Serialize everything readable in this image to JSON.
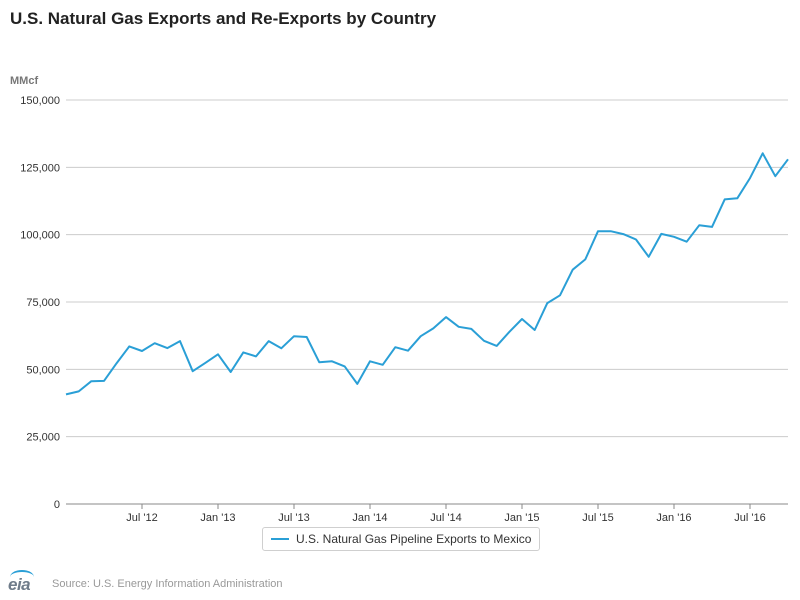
{
  "header": {
    "title": "U.S. Natural Gas Exports and Re-Exports by Country"
  },
  "footer": {
    "source": "Source: U.S. Energy Information Administration",
    "logo_text": "eia"
  },
  "colors": {
    "series": "#2a9fd6",
    "grid": "#cccccc",
    "axis": "#888888"
  },
  "chart_data": {
    "type": "line",
    "title": "U.S. Natural Gas Exports and Re-Exports by Country",
    "ylabel": "MMcf",
    "xlabel": "",
    "ylim": [
      0,
      150000
    ],
    "yticks": [
      0,
      25000,
      50000,
      75000,
      100000,
      125000,
      150000
    ],
    "ytick_labels": [
      "0",
      "25,000",
      "50,000",
      "75,000",
      "100,000",
      "125,000",
      "150,000"
    ],
    "grid": true,
    "legend": "bottom-center",
    "x_range": [
      "2012-01",
      "2016-10"
    ],
    "x_ticks": [
      {
        "label": "Jul '12",
        "date": "2012-07"
      },
      {
        "label": "Jan '13",
        "date": "2013-01"
      },
      {
        "label": "Jul '13",
        "date": "2013-07"
      },
      {
        "label": "Jan '14",
        "date": "2014-01"
      },
      {
        "label": "Jul '14",
        "date": "2014-07"
      },
      {
        "label": "Jan '15",
        "date": "2015-01"
      },
      {
        "label": "Jul '15",
        "date": "2015-07"
      },
      {
        "label": "Jan '16",
        "date": "2016-01"
      },
      {
        "label": "Jul '16",
        "date": "2016-07"
      }
    ],
    "series": [
      {
        "name": "U.S. Natural Gas Pipeline Exports to Mexico",
        "x": [
          "2012-01",
          "2012-02",
          "2012-03",
          "2012-04",
          "2012-05",
          "2012-06",
          "2012-07",
          "2012-08",
          "2012-09",
          "2012-10",
          "2012-11",
          "2012-12",
          "2013-01",
          "2013-02",
          "2013-03",
          "2013-04",
          "2013-05",
          "2013-06",
          "2013-07",
          "2013-08",
          "2013-09",
          "2013-10",
          "2013-11",
          "2013-12",
          "2014-01",
          "2014-02",
          "2014-03",
          "2014-04",
          "2014-05",
          "2014-06",
          "2014-07",
          "2014-08",
          "2014-09",
          "2014-10",
          "2014-11",
          "2014-12",
          "2015-01",
          "2015-02",
          "2015-03",
          "2015-04",
          "2015-05",
          "2015-06",
          "2015-07",
          "2015-08",
          "2015-09",
          "2015-10",
          "2015-11",
          "2015-12",
          "2016-01",
          "2016-02",
          "2016-03",
          "2016-04",
          "2016-05",
          "2016-06",
          "2016-07",
          "2016-08",
          "2016-09",
          "2016-10"
        ],
        "values": [
          40700,
          41800,
          45600,
          45700,
          52300,
          58500,
          56800,
          59700,
          57900,
          60500,
          49300,
          52400,
          55600,
          49000,
          56300,
          54800,
          60500,
          57800,
          62300,
          62000,
          52600,
          53000,
          51100,
          44600,
          53000,
          51700,
          58200,
          56900,
          62300,
          65200,
          69400,
          65800,
          65000,
          60600,
          58700,
          63900,
          68700,
          64600,
          74600,
          77500,
          87000,
          90800,
          101300,
          101300,
          100200,
          98200,
          91800,
          100300,
          99200,
          97400,
          103500,
          102900,
          113100,
          113500,
          121000,
          130200,
          121700,
          128000
        ]
      }
    ]
  }
}
